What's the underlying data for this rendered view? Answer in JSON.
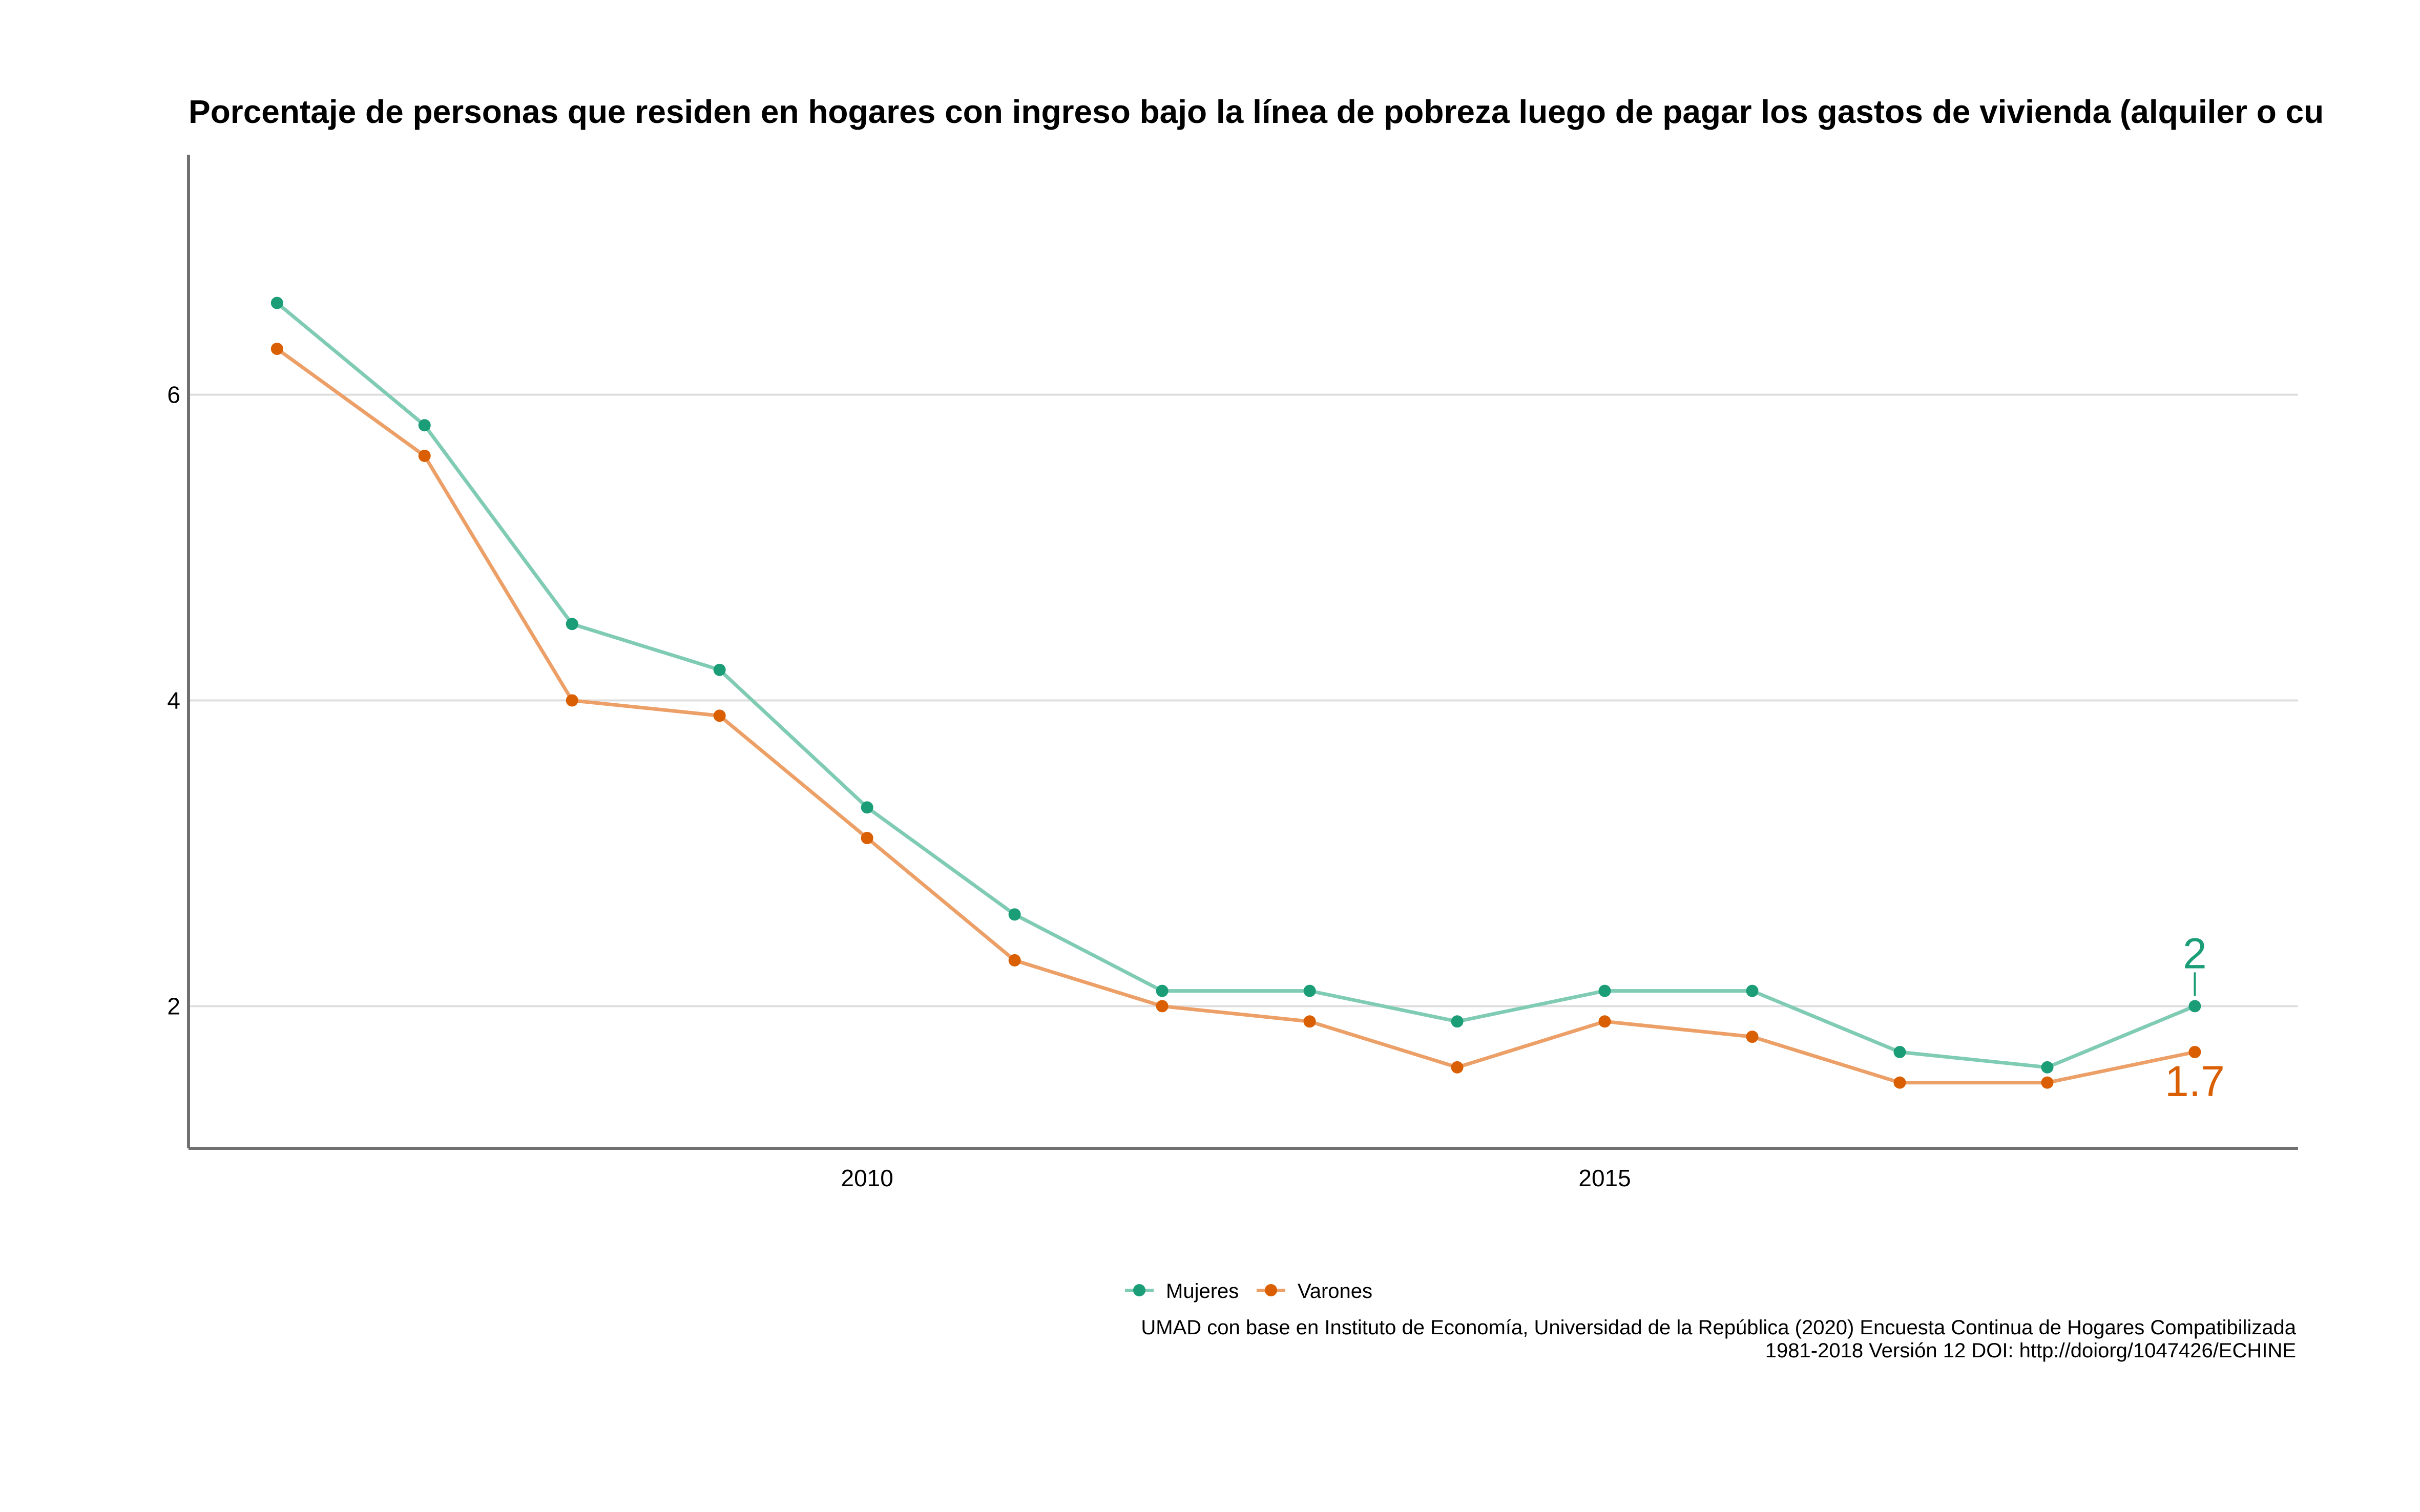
{
  "chart_data": {
    "type": "line",
    "title": "Porcentaje de personas que residen en hogares con ingreso bajo la línea de pobreza luego de pagar los gastos de vivienda (alquiler o cu",
    "xlabel": "",
    "ylabel": "",
    "x": [
      2006,
      2007,
      2008,
      2009,
      2010,
      2011,
      2012,
      2013,
      2014,
      2015,
      2016,
      2017,
      2018,
      2019
    ],
    "xlim": [
      2005.4,
      2019.7
    ],
    "ylim": [
      1.07,
      7.57
    ],
    "x_ticks": [
      2010,
      2015
    ],
    "x_tick_labels": [
      "2010",
      "2015"
    ],
    "y_ticks": [
      2,
      4,
      6
    ],
    "y_tick_labels": [
      "2",
      "4",
      "6"
    ],
    "grid": "horizontal major lines",
    "legend_position": "bottom",
    "series": [
      {
        "name": "Mujeres",
        "color": "#1b9e77",
        "line_color": "#7fcbb4",
        "values": [
          6.6,
          5.8,
          4.5,
          4.2,
          3.3,
          2.6,
          2.1,
          2.1,
          1.9,
          2.1,
          2.1,
          1.7,
          1.6,
          2.0
        ],
        "end_label": "2"
      },
      {
        "name": "Varones",
        "color": "#d95f02",
        "line_color": "#ec9f66",
        "values": [
          6.3,
          5.6,
          4.0,
          3.9,
          3.1,
          2.3,
          2.0,
          1.9,
          1.6,
          1.9,
          1.8,
          1.5,
          1.5,
          1.7
        ],
        "end_label": "1.7"
      }
    ],
    "caption": [
      "UMAD con base en Instituto de Economía, Universidad de la República (2020) Encuesta Continua de Hogares Compatibilizada",
      "1981-2018 Versión 12 DOI: http://doiorg/1047426/ECHINE"
    ]
  }
}
